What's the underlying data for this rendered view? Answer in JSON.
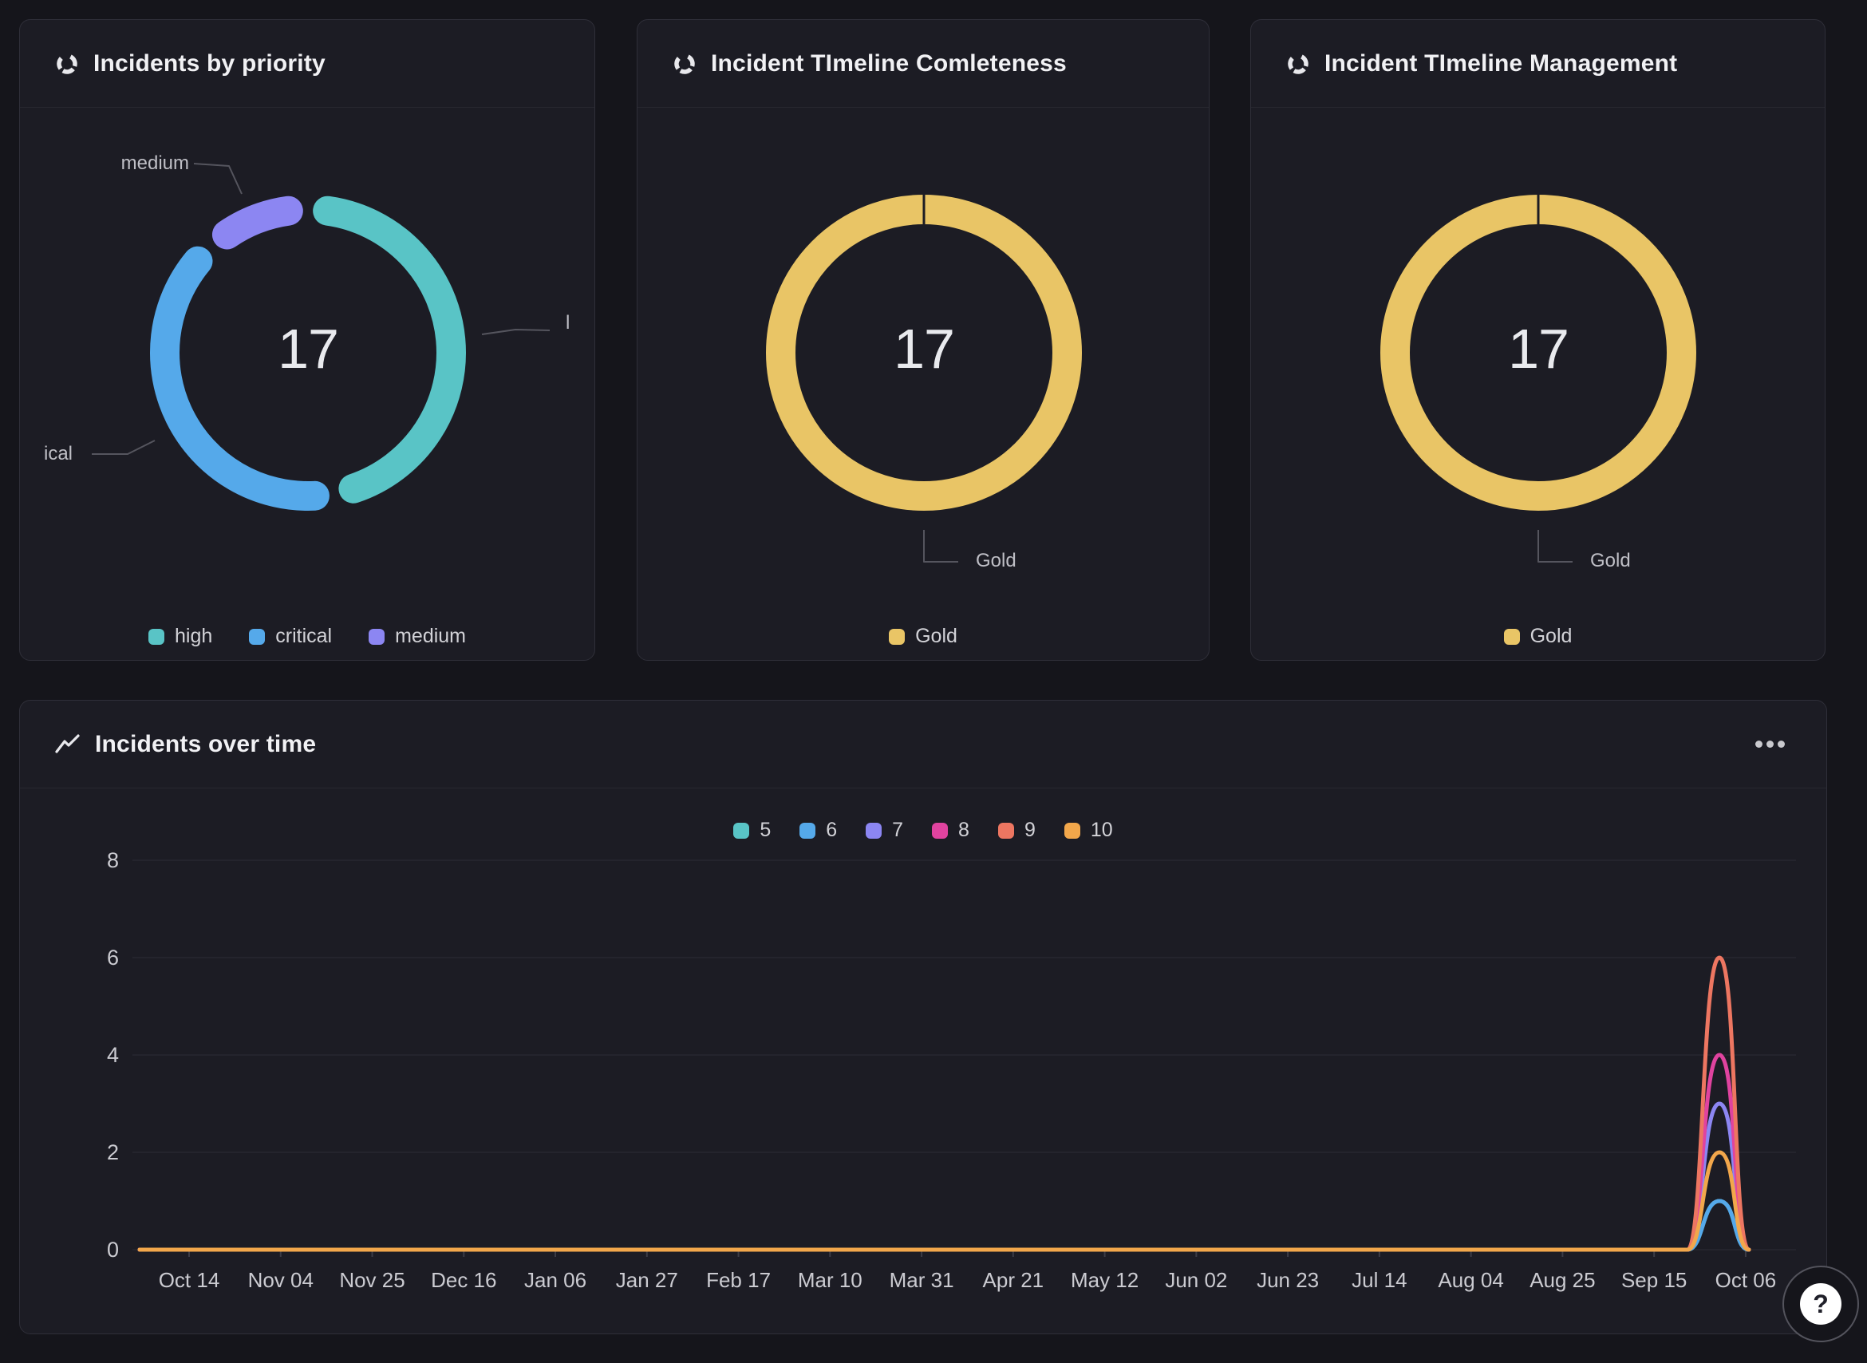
{
  "colors": {
    "page_bg": "#15151B",
    "panel_bg": "#1C1C24",
    "panel_border": "#2F2F39",
    "grid_line": "#2D2D36",
    "callout_line": "#55555E",
    "teal": "#59C4C6",
    "blue": "#55A9EA",
    "purple": "#8C86F2",
    "gold": "#E9C566",
    "magenta": "#E0439F",
    "salmon": "#ED7661",
    "orange": "#F2A74B"
  },
  "panels": {
    "priority": {
      "title": "Incidents by priority",
      "center_value": "17",
      "callout_medium": "medium",
      "callout_critical_clipped": "ical",
      "callout_high_clipped": "l",
      "legend": [
        {
          "label": "high",
          "color": "#59C4C6"
        },
        {
          "label": "critical",
          "color": "#55A9EA"
        },
        {
          "label": "medium",
          "color": "#8C86F2"
        }
      ]
    },
    "completeness": {
      "title": "Incident TImeline Comleteness",
      "center_value": "17",
      "callout_label": "Gold",
      "legend": [
        {
          "label": "Gold",
          "color": "#E9C566"
        }
      ]
    },
    "management": {
      "title": "Incident TImeline Management",
      "center_value": "17",
      "callout_label": "Gold",
      "legend": [
        {
          "label": "Gold",
          "color": "#E9C566"
        }
      ]
    },
    "timeline": {
      "title": "Incidents over time"
    }
  },
  "help": {
    "label": "?"
  },
  "chart_data": [
    {
      "type": "pie",
      "title": "Incidents by priority",
      "donut": true,
      "labels": [
        "high",
        "critical",
        "medium"
      ],
      "values": [
        8,
        7,
        2
      ],
      "colors": [
        "#59C4C6",
        "#55A9EA",
        "#8C86F2"
      ],
      "center_label": "17",
      "total": 17,
      "legend_position": "bottom"
    },
    {
      "type": "pie",
      "title": "Incident TImeline Comleteness",
      "donut": true,
      "labels": [
        "Gold"
      ],
      "values": [
        17
      ],
      "colors": [
        "#E9C566"
      ],
      "center_label": "17",
      "total": 17,
      "legend_position": "bottom"
    },
    {
      "type": "pie",
      "title": "Incident TImeline Management",
      "donut": true,
      "labels": [
        "Gold"
      ],
      "values": [
        17
      ],
      "colors": [
        "#E9C566"
      ],
      "center_label": "17",
      "total": 17,
      "legend_position": "bottom"
    },
    {
      "type": "line",
      "title": "Incidents over time",
      "x_ticks": [
        "Oct 14",
        "Nov 04",
        "Nov 25",
        "Dec 16",
        "Jan 06",
        "Jan 27",
        "Feb 17",
        "Mar 10",
        "Mar 31",
        "Apr 21",
        "May 12",
        "Jun 02",
        "Jun 23",
        "Jul 14",
        "Aug 04",
        "Aug 25",
        "Sep 15",
        "Oct 06"
      ],
      "yticks": [
        0,
        2,
        4,
        6,
        8
      ],
      "ylim": [
        0,
        8
      ],
      "grid": true,
      "legend_position": "top",
      "series": [
        {
          "name": "5",
          "color": "#59C4C6",
          "points": [
            [
              "Oct 14",
              0
            ],
            [
              "Sep 22",
              0
            ],
            [
              "Sep 29",
              1
            ],
            [
              "Oct 06",
              0
            ]
          ]
        },
        {
          "name": "6",
          "color": "#55A9EA",
          "points": [
            [
              "Oct 14",
              0
            ],
            [
              "Sep 22",
              0
            ],
            [
              "Sep 29",
              1
            ],
            [
              "Oct 06",
              0
            ]
          ]
        },
        {
          "name": "7",
          "color": "#8C86F2",
          "points": [
            [
              "Oct 14",
              0
            ],
            [
              "Sep 22",
              0
            ],
            [
              "Sep 29",
              3
            ],
            [
              "Oct 06",
              0
            ]
          ]
        },
        {
          "name": "8",
          "color": "#E0439F",
          "points": [
            [
              "Oct 14",
              0
            ],
            [
              "Sep 22",
              0
            ],
            [
              "Sep 29",
              4
            ],
            [
              "Oct 06",
              0
            ]
          ]
        },
        {
          "name": "9",
          "color": "#ED7661",
          "points": [
            [
              "Oct 14",
              0
            ],
            [
              "Sep 22",
              0
            ],
            [
              "Sep 29",
              6
            ],
            [
              "Oct 06",
              0
            ]
          ]
        },
        {
          "name": "10",
          "color": "#F2A74B",
          "points": [
            [
              "Oct 14",
              0
            ],
            [
              "Sep 22",
              0
            ],
            [
              "Sep 29",
              2
            ],
            [
              "Oct 06",
              0
            ]
          ]
        }
      ]
    }
  ]
}
